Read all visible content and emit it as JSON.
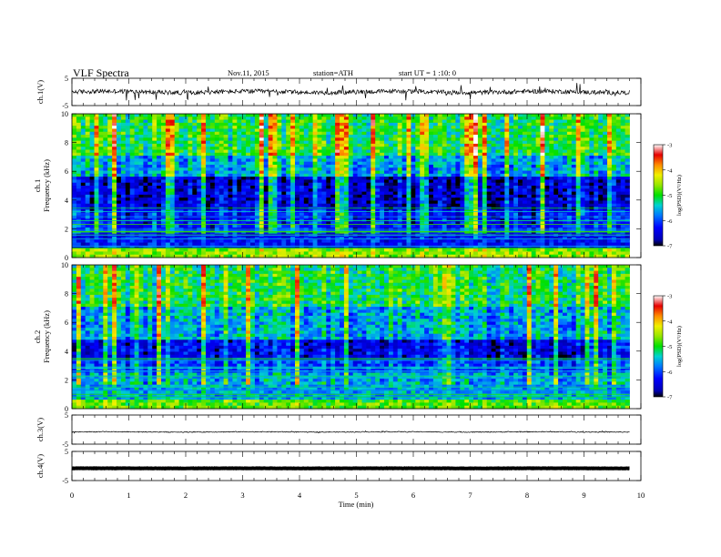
{
  "header": {
    "title": "VLF  Spectra",
    "date": "Nov.11, 2015",
    "station": "station=ATH",
    "start": "start  UT  =   1  :10: 0"
  },
  "chart_data": {
    "type": "heatmap",
    "title": "VLF  Spectra",
    "xlabel": "Time  (min)",
    "xlim": [
      0,
      10
    ],
    "x_ticks": [
      "0",
      "1",
      "2",
      "3",
      "4",
      "5",
      "6",
      "7",
      "8",
      "9",
      "10"
    ],
    "data_end_min": 9.8,
    "panels": [
      {
        "id": "ch1-waveform",
        "kind": "waveform",
        "ylabel": "ch.1(V)",
        "ylim": [
          -5,
          5
        ],
        "y_ticks": [
          "5",
          "-5"
        ],
        "baseline": 0,
        "amplitude": 0.8,
        "spike_amplitude": 3
      },
      {
        "id": "ch1-spectrogram",
        "kind": "spectrogram",
        "channel_label": "ch.1",
        "ylabel": "Frequency  (kHz)",
        "ylim": [
          0,
          10
        ],
        "y_ticks": [
          "0",
          "2",
          "4",
          "6",
          "8",
          "10"
        ],
        "colorbar_label": "log(PSD)(V²/Hz)",
        "colorbar_range": [
          -7,
          -3
        ],
        "colorbar_ticks": [
          "-3",
          "-4",
          "-5",
          "-6",
          "-7"
        ],
        "band_profile": [
          {
            "f": [
              0,
              0.6
            ],
            "level": -4.6
          },
          {
            "f": [
              0.6,
              1.6
            ],
            "level": -6.3
          },
          {
            "f": [
              1.6,
              3.4
            ],
            "level": -6.2
          },
          {
            "f": [
              3.4,
              5.6
            ],
            "level": -6.5
          },
          {
            "f": [
              5.6,
              7.0
            ],
            "level": -5.6
          },
          {
            "f": [
              7.0,
              10.0
            ],
            "level": -5.0
          }
        ]
      },
      {
        "id": "ch2-spectrogram",
        "kind": "spectrogram",
        "channel_label": "ch.2",
        "ylabel": "Frequency  (kHz)",
        "ylim": [
          0,
          10
        ],
        "y_ticks": [
          "0",
          "2",
          "4",
          "6",
          "8",
          "10"
        ],
        "colorbar_label": "log(PSD)(V²/Hz)",
        "colorbar_range": [
          -7,
          -3
        ],
        "colorbar_ticks": [
          "-3",
          "-4",
          "-5",
          "-6",
          "-7"
        ],
        "band_profile": [
          {
            "f": [
              0,
              0.6
            ],
            "level": -4.8
          },
          {
            "f": [
              0.6,
              2.6
            ],
            "level": -5.6
          },
          {
            "f": [
              2.6,
              3.4
            ],
            "level": -6.0
          },
          {
            "f": [
              3.4,
              4.8
            ],
            "level": -6.4
          },
          {
            "f": [
              4.8,
              7.0
            ],
            "level": -5.6
          },
          {
            "f": [
              7.0,
              10.0
            ],
            "level": -5.1
          }
        ]
      },
      {
        "id": "ch3-waveform",
        "kind": "waveform",
        "ylabel": "ch.3(V)",
        "ylim": [
          -5,
          5
        ],
        "y_ticks": [
          "5",
          "-5"
        ],
        "baseline": -0.8,
        "amplitude": 0.15,
        "spike_amplitude": 0.3
      },
      {
        "id": "ch4-waveform",
        "kind": "waveform",
        "ylabel": "ch.4(V)",
        "ylim": [
          -5,
          5
        ],
        "y_ticks": [
          "5",
          "-5"
        ],
        "baseline": -0.8,
        "amplitude": 0.05,
        "spike_amplitude": 0.05,
        "thick": true
      }
    ]
  }
}
